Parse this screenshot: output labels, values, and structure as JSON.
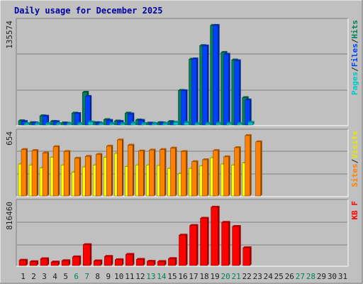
{
  "chart_data": {
    "type": "bar",
    "title": "Daily usage for December 2025",
    "days": [
      "1",
      "2",
      "3",
      "4",
      "5",
      "6",
      "7",
      "8",
      "9",
      "10",
      "11",
      "12",
      "13",
      "14",
      "15",
      "16",
      "17",
      "18",
      "19",
      "20",
      "21",
      "22",
      "23",
      "24",
      "25",
      "26",
      "27",
      "28",
      "29",
      "30",
      "31"
    ],
    "weekend_days": [
      6,
      7,
      13,
      14,
      20,
      21,
      27,
      28
    ],
    "panels": [
      {
        "id": "hits-files-pages",
        "max_label": "135574",
        "ymax": 135574,
        "legend": [
          {
            "label": "Pages",
            "color": "#00c8c8"
          },
          {
            "label": "/",
            "color": "#202020"
          },
          {
            "label": "Files",
            "color": "#0040ff"
          },
          {
            "label": "/",
            "color": "#202020"
          },
          {
            "label": "Hits",
            "color": "#00805c"
          }
        ],
        "series": [
          {
            "name": "Hits",
            "color": "#00805c",
            "values": [
              5500,
              3000,
              12000,
              4700,
              2700,
              15500,
              43000,
              3000,
              7000,
              5200,
              15500,
              6500,
              2500,
              3000,
              4400,
              45500,
              86500,
              104500,
              131000,
              95500,
              85500,
              36000,
              0,
              0,
              0,
              0,
              0,
              0,
              0,
              0,
              0
            ]
          },
          {
            "name": "Files",
            "color": "#0040ff",
            "values": [
              4500,
              2700,
              11500,
              4300,
              2200,
              15000,
              37500,
              2700,
              6000,
              4500,
              14500,
              6000,
              2200,
              2500,
              3500,
              45000,
              87000,
              104000,
              131000,
              93000,
              84500,
              33000,
              0,
              0,
              0,
              0,
              0,
              0,
              0,
              0,
              0
            ]
          },
          {
            "name": "Pages",
            "color": "#00c8c8",
            "values": [
              1500,
              800,
              900,
              700,
              600,
              1200,
              3800,
              1000,
              1400,
              1100,
              2600,
              1200,
              800,
              900,
              3500,
              3200,
              1800,
              2000,
              2500,
              2200,
              2000,
              3400,
              0,
              0,
              0,
              0,
              0,
              0,
              0,
              0,
              0
            ]
          }
        ]
      },
      {
        "id": "visits-sites",
        "max_label": "654",
        "ymax": 654,
        "legend": [
          {
            "label": "Sites",
            "color": "#ff8000"
          },
          {
            "label": "/",
            "color": "#202020"
          },
          {
            "label": "Visits",
            "color": "#e8e800"
          }
        ],
        "series": [
          {
            "name": "Visits",
            "color": "#ffff00",
            "values": [
              330,
              320,
              290,
              400,
              320,
              245,
              300,
              320,
              400,
              440,
              305,
              320,
              320,
              315,
              285,
              230,
              285,
              310,
              395,
              330,
              320,
              340,
              0,
              0,
              0,
              0,
              0,
              0,
              0,
              0,
              0
            ]
          },
          {
            "name": "Sites",
            "color": "#ff8000",
            "values": [
              480,
              470,
              445,
              510,
              460,
              390,
              410,
              430,
              515,
              580,
              525,
              465,
              475,
              480,
              495,
              460,
              355,
              375,
              470,
              405,
              500,
              625,
              560,
              0,
              0,
              0,
              0,
              0,
              0,
              0,
              0
            ]
          }
        ]
      },
      {
        "id": "kbytes",
        "max_label": "816460",
        "ymax": 816460,
        "legend": [
          {
            "label": "KB F",
            "color": "#ff0000"
          }
        ],
        "series": [
          {
            "name": "KB F",
            "color": "#ff0000",
            "values": [
              68000,
              50000,
              88000,
              45000,
              63000,
              113000,
              272000,
              60000,
              118000,
              75000,
              145000,
              80000,
              55000,
              52000,
              90000,
              397000,
              523000,
              617000,
              762000,
              564000,
              510000,
              232000,
              0,
              0,
              0,
              0,
              0,
              0,
              0,
              0,
              0
            ]
          }
        ]
      }
    ]
  }
}
